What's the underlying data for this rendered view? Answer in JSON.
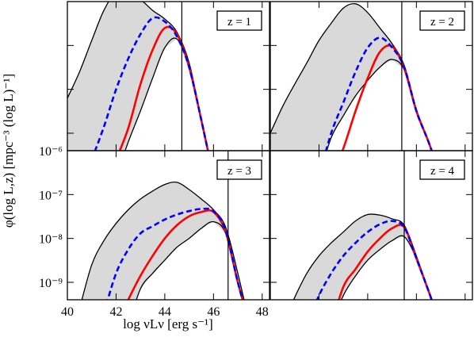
{
  "xlabel": "log νLν [erg s⁻¹]",
  "ylabel": "φ(log L,z) [mpc⁻³ (log L)⁻¹]",
  "chart_data": [
    {
      "type": "line",
      "annotation": "z = 1",
      "x": [
        40,
        40.5,
        41,
        41.5,
        42,
        42.5,
        43,
        43.5,
        44,
        44.5,
        45,
        45.5,
        46,
        46.5,
        47,
        47.5,
        48
      ],
      "xlim": [
        40,
        48.3
      ],
      "ylim": [
        4e-10,
        1e-06
      ],
      "log_y": true,
      "xticks": [
        40,
        42,
        44,
        46,
        48
      ],
      "yticks": [
        {
          "value": 1e-09,
          "label": "10⁻⁹"
        },
        {
          "value": 1e-08,
          "label": "10⁻⁸"
        },
        {
          "value": 1e-07,
          "label": "10⁻⁷"
        },
        {
          "value": 1e-06,
          "label": "10⁻⁶"
        }
      ],
      "show_xtick_labels": false,
      "show_ytick_labels": false,
      "vline": 44.7,
      "fill_between": [
        0,
        1
      ],
      "fill_color": "#d9d9d9",
      "series": [
        {
          "color": "#000000",
          "dashed": false,
          "values": [
            6.3e-09,
            2.5e-08,
            1.3e-07,
            6.3e-07,
            1.6e-06,
            1.3e-06,
            1.1e-06,
            6.3e-07,
            4e-07,
            2e-07,
            4e-08,
            2e-09,
            1e-10,
            null,
            null,
            null,
            null
          ]
        },
        {
          "color": "#000000",
          "dashed": false,
          "values": [
            null,
            null,
            null,
            null,
            1e-10,
            6.3e-10,
            3.2e-09,
            1.8e-08,
            8.9e-08,
            1.4e-07,
            3.2e-08,
            2e-09,
            1e-10,
            null,
            null,
            null,
            null
          ]
        },
        {
          "color": "#ff0000",
          "dashed": false,
          "values": [
            null,
            null,
            null,
            null,
            2.5e-10,
            1.3e-09,
            1.3e-08,
            7.9e-08,
            2.5e-07,
            1.8e-07,
            3.2e-08,
            2e-09,
            1e-10,
            null,
            null,
            null,
            null
          ]
        },
        {
          "color": "#0000ff",
          "dashed": true,
          "values": [
            null,
            null,
            2.5e-10,
            1.4e-09,
            1e-08,
            5e-08,
            1.8e-07,
            4.2e-07,
            3.5e-07,
            1.6e-07,
            3.2e-08,
            2e-09,
            1e-10,
            null,
            null,
            null,
            null
          ]
        }
      ]
    },
    {
      "type": "line",
      "annotation": "z = 2",
      "x": [
        40,
        40.5,
        41,
        41.5,
        42,
        42.5,
        43,
        43.5,
        44,
        44.5,
        45,
        45.5,
        46,
        46.5,
        47,
        47.5,
        48
      ],
      "xlim": [
        40,
        48.3
      ],
      "ylim": [
        4e-10,
        1e-06
      ],
      "log_y": true,
      "xticks": [
        40,
        42,
        44,
        46,
        48
      ],
      "yticks": [
        {
          "value": 1e-09,
          "label": "10⁻⁹"
        },
        {
          "value": 1e-08,
          "label": "10⁻⁸"
        },
        {
          "value": 1e-07,
          "label": "10⁻⁷"
        },
        {
          "value": 1e-06,
          "label": "10⁻⁶"
        }
      ],
      "show_xtick_labels": false,
      "show_ytick_labels": false,
      "vline": 45.4,
      "fill_between": [
        0,
        1
      ],
      "fill_color": "#d9d9d9",
      "series": [
        {
          "color": "#000000",
          "dashed": false,
          "values": [
            1e-09,
            4e-09,
            1.3e-08,
            4e-08,
            1.3e-07,
            3.2e-07,
            7.1e-07,
            8.9e-07,
            5.6e-07,
            2.5e-07,
            1.1e-07,
            3.5e-08,
            3.5e-09,
            6.3e-10,
            1e-10,
            null,
            null
          ]
        },
        {
          "color": "#000000",
          "dashed": false,
          "values": [
            null,
            null,
            null,
            null,
            1e-10,
            7.9e-10,
            2.5e-09,
            7.1e-09,
            1.6e-08,
            3.2e-08,
            4.8e-08,
            2.8e-08,
            3e-09,
            6.3e-10,
            1e-10,
            null,
            null
          ]
        },
        {
          "color": "#ff0000",
          "dashed": false,
          "values": [
            null,
            null,
            null,
            null,
            null,
            1e-10,
            4.5e-10,
            3.2e-09,
            1.8e-08,
            7.1e-08,
            9.5e-08,
            3e-08,
            3.2e-09,
            6.3e-10,
            1e-10,
            null,
            null
          ]
        },
        {
          "color": "#0000ff",
          "dashed": true,
          "values": [
            null,
            null,
            null,
            null,
            1e-10,
            1e-09,
            5e-09,
            2.5e-08,
            8.9e-08,
            1.5e-07,
            9e-08,
            3.2e-08,
            3.2e-09,
            6.3e-10,
            1e-10,
            null,
            null
          ]
        }
      ]
    },
    {
      "type": "line",
      "annotation": "z = 3",
      "x": [
        40,
        40.5,
        41,
        41.5,
        42,
        42.5,
        43,
        43.5,
        44,
        44.5,
        45,
        45.5,
        46,
        46.5,
        47,
        47.5,
        48
      ],
      "xlim": [
        40,
        48.3
      ],
      "ylim": [
        4e-10,
        1e-06
      ],
      "log_y": true,
      "xticks": [
        40,
        42,
        44,
        46,
        48
      ],
      "yticks": [
        {
          "value": 1e-09,
          "label": "10⁻⁹"
        },
        {
          "value": 1e-08,
          "label": "10⁻⁸"
        },
        {
          "value": 1e-07,
          "label": "10⁻⁷"
        },
        {
          "value": 1e-06,
          "label": "10⁻⁶"
        }
      ],
      "show_xtick_labels": true,
      "show_ytick_labels": true,
      "vline": 46.6,
      "fill_between": [
        0,
        1
      ],
      "fill_color": "#d9d9d9",
      "series": [
        {
          "color": "#000000",
          "dashed": false,
          "values": [
            null,
            2.5e-10,
            2.5e-09,
            8.9e-09,
            2.2e-08,
            4.5e-08,
            7.9e-08,
            1.2e-07,
            1.7e-07,
            1.9e-07,
            1.3e-07,
            7.9e-08,
            4.5e-08,
            1.8e-08,
            1.6e-09,
            1e-10,
            null
          ]
        },
        {
          "color": "#000000",
          "dashed": false,
          "values": [
            null,
            null,
            null,
            null,
            null,
            1e-10,
            7.1e-10,
            1.6e-09,
            3.2e-09,
            6.3e-09,
            1e-08,
            1.7e-08,
            2.4e-08,
            1.3e-08,
            1e-09,
            1e-10,
            null
          ]
        },
        {
          "color": "#ff0000",
          "dashed": false,
          "values": [
            null,
            null,
            null,
            null,
            1e-10,
            4e-10,
            1.4e-09,
            4e-09,
            1e-08,
            2e-08,
            3.2e-08,
            4e-08,
            4e-08,
            1.4e-08,
            1e-09,
            1e-10,
            null
          ]
        },
        {
          "color": "#0000ff",
          "dashed": true,
          "values": [
            null,
            null,
            null,
            2e-10,
            1.6e-09,
            5.6e-09,
            1.3e-08,
            1.9e-08,
            2.7e-08,
            3.5e-08,
            4.2e-08,
            4.7e-08,
            4.2e-08,
            1.5e-08,
            1e-09,
            1e-10,
            null
          ]
        }
      ]
    },
    {
      "type": "line",
      "annotation": "z = 4",
      "x": [
        40,
        40.5,
        41,
        41.5,
        42,
        42.5,
        43,
        43.5,
        44,
        44.5,
        45,
        45.5,
        46,
        46.5,
        47,
        47.5,
        48
      ],
      "xlim": [
        40,
        48.3
      ],
      "ylim": [
        4e-10,
        1e-06
      ],
      "log_y": true,
      "xticks": [
        40,
        42,
        44,
        46,
        48
      ],
      "yticks": [
        {
          "value": 1e-09,
          "label": "10⁻⁹"
        },
        {
          "value": 1e-08,
          "label": "10⁻⁸"
        },
        {
          "value": 1e-07,
          "label": "10⁻⁷"
        },
        {
          "value": 1e-06,
          "label": "10⁻⁶"
        }
      ],
      "show_xtick_labels": false,
      "show_ytick_labels": false,
      "vline": 45.5,
      "fill_between": [
        0,
        1
      ],
      "fill_color": "#d9d9d9",
      "series": [
        {
          "color": "#000000",
          "dashed": false,
          "values": [
            null,
            1e-10,
            4.5e-10,
            1.6e-09,
            4e-09,
            7.9e-09,
            1.4e-08,
            2.5e-08,
            3.5e-08,
            3.4e-08,
            2.8e-08,
            2e-08,
            4e-09,
            6.3e-10,
            1e-10,
            null,
            null
          ]
        },
        {
          "color": "#000000",
          "dashed": false,
          "values": [
            null,
            null,
            null,
            null,
            null,
            1e-10,
            5e-10,
            1.4e-09,
            3.2e-09,
            5.6e-09,
            8.9e-09,
            1.1e-08,
            3.5e-09,
            6.3e-10,
            1e-10,
            null,
            null
          ]
        },
        {
          "color": "#ff0000",
          "dashed": false,
          "values": [
            null,
            null,
            null,
            null,
            null,
            1e-10,
            7.9e-10,
            2e-09,
            5e-09,
            1e-08,
            1.7e-08,
            1.8e-08,
            3.5e-09,
            6.3e-10,
            1e-10,
            null,
            null
          ]
        },
        {
          "color": "#0000ff",
          "dashed": true,
          "values": [
            null,
            null,
            null,
            1e-10,
            5e-10,
            1.6e-09,
            4e-09,
            7.9e-09,
            1.4e-08,
            2.1e-08,
            2.5e-08,
            1.8e-08,
            3.5e-09,
            6.3e-10,
            1e-10,
            null,
            null
          ]
        }
      ]
    }
  ]
}
